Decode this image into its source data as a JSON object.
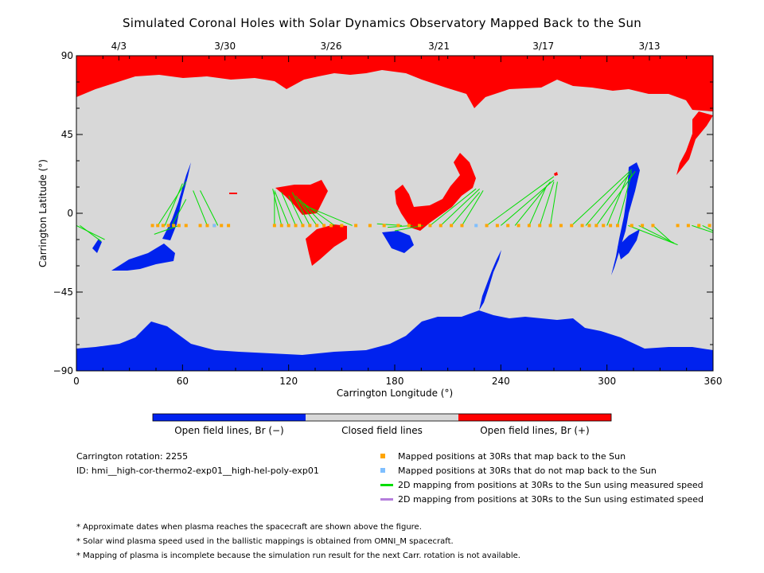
{
  "title": "Simulated Coronal Holes with Solar Dynamics Observatory Mapped Back to the Sun",
  "axes": {
    "x_label": "Carrington Longitude (°)",
    "y_label": "Carrington Latitude (°)",
    "x_ticks": [
      "0",
      "60",
      "120",
      "180",
      "240",
      "300",
      "360"
    ],
    "y_ticks": [
      "90",
      "45",
      "0",
      "−45",
      "−90"
    ],
    "top_date_ticks": [
      "4/3",
      "3/30",
      "3/26",
      "3/21",
      "3/17",
      "3/13"
    ]
  },
  "colors": {
    "open_negative": "#0022ee",
    "closed": "#d8d8d8",
    "open_positive": "#ff0000",
    "mapped_ok": "#ffa500",
    "mapped_not": "#7fbfff",
    "measured_line": "#00dd00",
    "estimated_line": "#b57edc"
  },
  "colorbar": {
    "labels": [
      "Open field lines, Br (−)",
      "Closed field lines",
      "Open field lines, Br (+)"
    ]
  },
  "info": {
    "rotation": "Carrington rotation: 2255",
    "id": "ID: hmi__high-cor-thermo2-exp01__high-hel-poly-exp01"
  },
  "legend": [
    {
      "kind": "square",
      "color": "#ffa500",
      "label": "Mapped positions at 30Rs that map back to the Sun"
    },
    {
      "kind": "square",
      "color": "#7fbfff",
      "label": "Mapped positions at 30Rs that do not map back to the Sun"
    },
    {
      "kind": "line",
      "color": "#00dd00",
      "label": "2D mapping from positions at 30Rs to the Sun using measured speed"
    },
    {
      "kind": "line",
      "color": "#b57edc",
      "label": "2D mapping from positions at 30Rs to the Sun using estimated speed"
    }
  ],
  "notes": [
    "* Approximate dates when plasma reaches the spacecraft are shown above the figure.",
    "* Solar wind plasma speed used in the ballistic mappings is obtained from OMNI_M spacecraft.",
    "* Mapping of plasma is incomplete because the simulation run result for the next Carr. rotation is not available."
  ],
  "map_data": {
    "mapping_latitude": -7,
    "mapped_longitudes": [
      43,
      46,
      49,
      52,
      55,
      58,
      62,
      70,
      74,
      78,
      82,
      86,
      112,
      116,
      120,
      124,
      128,
      132,
      136,
      140,
      144,
      150,
      158,
      166,
      174,
      182,
      188,
      194,
      200,
      206,
      212,
      218,
      232,
      238,
      244,
      250,
      256,
      262,
      268,
      274,
      280,
      286,
      290,
      294,
      298,
      302,
      306,
      314,
      320,
      326,
      340,
      346,
      352,
      358
    ],
    "unmapped_longitudes": [
      78,
      226
    ],
    "mapping_lines": [
      {
        "from": [
          0,
          -7
        ],
        "to": [
          16,
          -15
        ]
      },
      {
        "from": [
          2,
          -7
        ],
        "to": [
          14,
          -16
        ]
      },
      {
        "from": [
          46,
          -7
        ],
        "to": [
          62,
          18
        ]
      },
      {
        "from": [
          50,
          -7
        ],
        "to": [
          60,
          17
        ]
      },
      {
        "from": [
          54,
          -7
        ],
        "to": [
          62,
          8
        ]
      },
      {
        "from": [
          58,
          -7
        ],
        "to": [
          44,
          -12
        ]
      },
      {
        "from": [
          74,
          -7
        ],
        "to": [
          66,
          13
        ]
      },
      {
        "from": [
          80,
          -7
        ],
        "to": [
          70,
          13
        ]
      },
      {
        "from": [
          112,
          -7
        ],
        "to": [
          112,
          12
        ]
      },
      {
        "from": [
          116,
          -7
        ],
        "to": [
          111,
          14
        ]
      },
      {
        "from": [
          120,
          -7
        ],
        "to": [
          112,
          13
        ]
      },
      {
        "from": [
          124,
          -7
        ],
        "to": [
          116,
          12
        ]
      },
      {
        "from": [
          128,
          -7
        ],
        "to": [
          120,
          10
        ]
      },
      {
        "from": [
          132,
          -7
        ],
        "to": [
          122,
          12
        ]
      },
      {
        "from": [
          136,
          -7
        ],
        "to": [
          124,
          10
        ]
      },
      {
        "from": [
          140,
          -7
        ],
        "to": [
          126,
          8
        ]
      },
      {
        "from": [
          146,
          -7
        ],
        "to": [
          128,
          6
        ]
      },
      {
        "from": [
          156,
          -7
        ],
        "to": [
          130,
          4
        ]
      },
      {
        "from": [
          184,
          -7
        ],
        "to": [
          170,
          -6
        ]
      },
      {
        "from": [
          190,
          -7
        ],
        "to": [
          176,
          -8
        ]
      },
      {
        "from": [
          196,
          -7
        ],
        "to": [
          180,
          -10
        ]
      },
      {
        "from": [
          200,
          -7
        ],
        "to": [
          226,
          14
        ]
      },
      {
        "from": [
          206,
          -7
        ],
        "to": [
          228,
          14
        ]
      },
      {
        "from": [
          212,
          -7
        ],
        "to": [
          228,
          12
        ]
      },
      {
        "from": [
          218,
          -7
        ],
        "to": [
          230,
          13
        ]
      },
      {
        "from": [
          232,
          -7
        ],
        "to": [
          270,
          21
        ]
      },
      {
        "from": [
          240,
          -7
        ],
        "to": [
          270,
          19
        ]
      },
      {
        "from": [
          248,
          -7
        ],
        "to": [
          268,
          18
        ]
      },
      {
        "from": [
          256,
          -7
        ],
        "to": [
          266,
          16
        ]
      },
      {
        "from": [
          262,
          -7
        ],
        "to": [
          270,
          18
        ]
      },
      {
        "from": [
          268,
          -7
        ],
        "to": [
          272,
          18
        ]
      },
      {
        "from": [
          280,
          -7
        ],
        "to": [
          314,
          25
        ]
      },
      {
        "from": [
          288,
          -7
        ],
        "to": [
          314,
          24
        ]
      },
      {
        "from": [
          294,
          -7
        ],
        "to": [
          316,
          24
        ]
      },
      {
        "from": [
          300,
          -7
        ],
        "to": [
          312,
          22
        ]
      },
      {
        "from": [
          306,
          -7
        ],
        "to": [
          314,
          23
        ]
      },
      {
        "from": [
          312,
          -7
        ],
        "to": [
          340,
          -18
        ]
      },
      {
        "from": [
          318,
          -7
        ],
        "to": [
          338,
          -17
        ]
      },
      {
        "from": [
          326,
          -7
        ],
        "to": [
          336,
          -16
        ]
      },
      {
        "from": [
          348,
          -7
        ],
        "to": [
          360,
          -11
        ]
      },
      {
        "from": [
          354,
          -7
        ],
        "to": [
          360,
          -10
        ]
      }
    ]
  }
}
